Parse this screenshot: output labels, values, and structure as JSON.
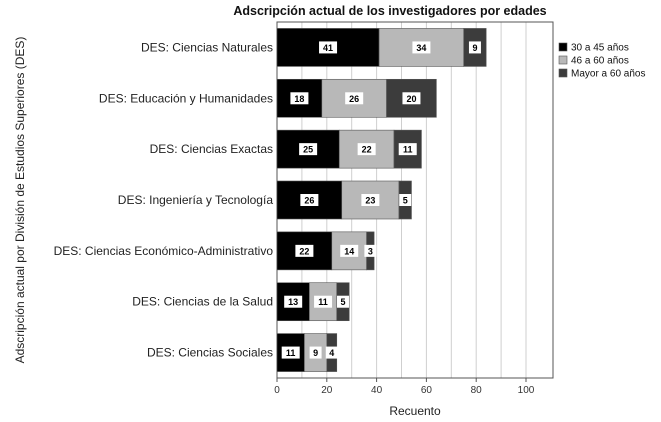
{
  "chart_data": {
    "type": "bar",
    "orientation": "horizontal",
    "stacked": true,
    "title": "Adscripción actual de los investigadores por edades",
    "xlabel": "Recuento",
    "ylabel": "Adscripción actual por División de Estudios Superiores (DES)",
    "xlim": [
      0,
      110
    ],
    "xticks": [
      0,
      20,
      40,
      60,
      80,
      100
    ],
    "grid": true,
    "legend_position": "right",
    "categories": [
      "DES: Ciencias Naturales",
      "DES: Educación y Humanidades",
      "DES: Ciencias Exactas",
      "DES: Ingeniería y Tecnología",
      "DES: Ciencias Económico-Administrativo",
      "DES: Ciencias de la Salud",
      "DES: Ciencias Sociales"
    ],
    "series": [
      {
        "name": "30 a 45 años",
        "color": "#000000",
        "values": [
          41,
          18,
          25,
          26,
          22,
          13,
          11
        ]
      },
      {
        "name": "46 a 60 años",
        "color": "#b8b8b8",
        "values": [
          34,
          26,
          22,
          23,
          14,
          11,
          9
        ]
      },
      {
        "name": "Mayor a 60 años",
        "color": "#3c3c3c",
        "values": [
          9,
          20,
          11,
          5,
          3,
          5,
          4
        ]
      }
    ]
  }
}
